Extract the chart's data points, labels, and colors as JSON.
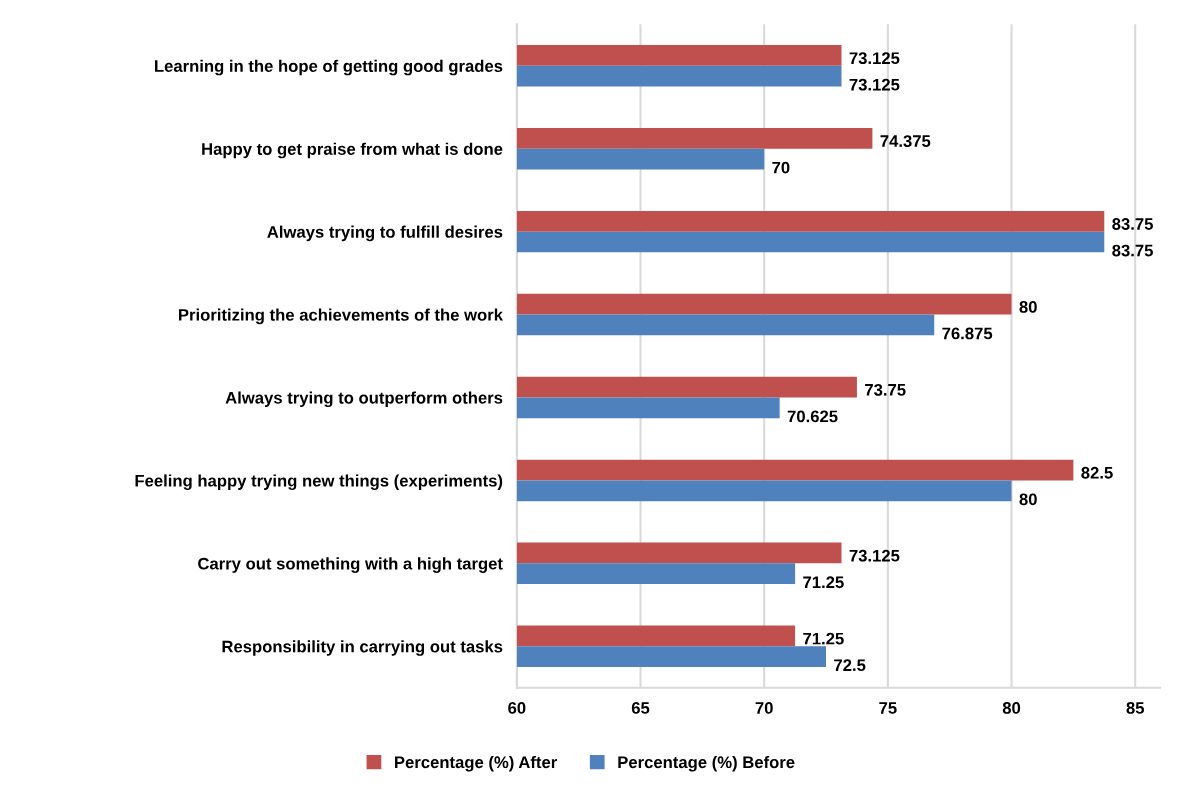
{
  "chart_data": {
    "type": "bar",
    "orientation": "horizontal",
    "categories": [
      "Learning in the hope of getting good grades",
      "Happy to get praise from what is done",
      "Always trying to fulfill desires",
      "Prioritizing the achievements of the work",
      "Always trying to outperform others",
      "Feeling happy trying new things (experiments)",
      "Carry out something with a high target",
      "Responsibility in carrying out tasks"
    ],
    "series": [
      {
        "name": "Percentage (%) After",
        "color": "#c0504d",
        "values": [
          73.125,
          74.375,
          83.75,
          80,
          73.75,
          82.5,
          73.125,
          71.25
        ]
      },
      {
        "name": "Percentage (%) Before",
        "color": "#4f81bd",
        "values": [
          73.125,
          70,
          83.75,
          76.875,
          70.625,
          80,
          71.25,
          72.5
        ]
      }
    ],
    "xlim": [
      60,
      86
    ],
    "xticks": [
      60,
      65,
      70,
      75,
      80,
      85
    ],
    "grid": "x",
    "legend": "bottom",
    "data_labels": true
  }
}
